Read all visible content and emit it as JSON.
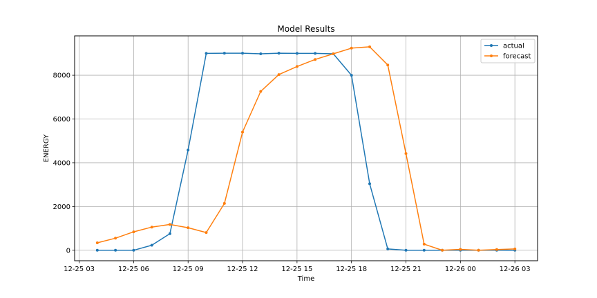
{
  "chart_data": {
    "type": "line",
    "title": "Model Results",
    "xlabel": "Time",
    "ylabel": "ENERGY",
    "x": [
      "12-25 04:00",
      "12-25 05:00",
      "12-25 06:00",
      "12-25 07:00",
      "12-25 08:00",
      "12-25 09:00",
      "12-25 10:00",
      "12-25 11:00",
      "12-25 12:00",
      "12-25 13:00",
      "12-25 14:00",
      "12-25 15:00",
      "12-25 16:00",
      "12-25 17:00",
      "12-25 18:00",
      "12-25 19:00",
      "12-25 20:00",
      "12-25 21:00",
      "12-25 22:00",
      "12-25 23:00",
      "12-26 00:00",
      "12-26 01:00",
      "12-26 02:00",
      "12-26 03:00"
    ],
    "xticks": [
      "12-25 03",
      "12-25 06",
      "12-25 09",
      "12-25 12",
      "12-25 15",
      "12-25 18",
      "12-25 21",
      "12-26 00",
      "12-26 03"
    ],
    "yticks": [
      0,
      2000,
      4000,
      6000,
      8000
    ],
    "xlim": [
      "12-25 02:45",
      "12-26 04:15"
    ],
    "ylim": [
      -480,
      9800
    ],
    "grid": true,
    "legend_position": "top-right",
    "series": [
      {
        "name": "actual",
        "color": "#1f77b4",
        "values": [
          0,
          0,
          0,
          230,
          760,
          4580,
          9000,
          9010,
          9010,
          8980,
          9010,
          9000,
          9000,
          8980,
          8000,
          3040,
          60,
          0,
          0,
          0,
          0,
          0,
          0,
          0
        ]
      },
      {
        "name": "forecast",
        "color": "#ff7f0e",
        "values": [
          340,
          550,
          840,
          1060,
          1180,
          1030,
          810,
          2140,
          5400,
          7260,
          8030,
          8400,
          8720,
          8980,
          9240,
          9300,
          8470,
          4420,
          280,
          0,
          40,
          0,
          30,
          60
        ]
      }
    ]
  }
}
